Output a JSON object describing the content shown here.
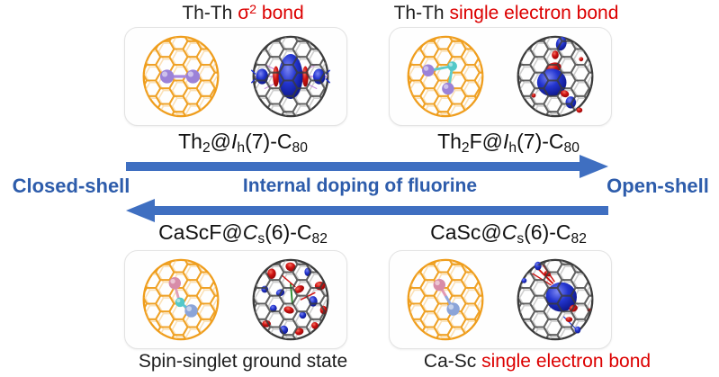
{
  "titles": {
    "top_left": [
      {
        "t": "Th-Th ",
        "c": "#1e1e1e"
      },
      {
        "t": "σ",
        "c": "#dc0000"
      },
      {
        "t": "2",
        "c": "#dc0000",
        "sup": true
      },
      {
        "t": " bond",
        "c": "#dc0000"
      }
    ],
    "top_right": [
      {
        "t": "Th-Th ",
        "c": "#1e1e1e"
      },
      {
        "t": "single electron bond",
        "c": "#dc0000"
      }
    ]
  },
  "formulas": {
    "top_left": [
      {
        "t": "Th"
      },
      {
        "t": "2",
        "sub": true
      },
      {
        "t": "@"
      },
      {
        "t": "I",
        "i": true
      },
      {
        "t": "h",
        "sub": true
      },
      {
        "t": "(7)-C"
      },
      {
        "t": "80",
        "sub": true
      }
    ],
    "top_right": [
      {
        "t": "Th"
      },
      {
        "t": "2",
        "sub": true
      },
      {
        "t": "F@"
      },
      {
        "t": "I",
        "i": true
      },
      {
        "t": "h",
        "sub": true
      },
      {
        "t": "(7)-C"
      },
      {
        "t": "80",
        "sub": true
      }
    ],
    "bottom_left": [
      {
        "t": "CaScF@"
      },
      {
        "t": "C",
        "i": true
      },
      {
        "t": "s",
        "sub": true
      },
      {
        "t": "(6)-C"
      },
      {
        "t": "82",
        "sub": true
      }
    ],
    "bottom_right": [
      {
        "t": "CaSc@"
      },
      {
        "t": "C",
        "i": true
      },
      {
        "t": "s",
        "sub": true
      },
      {
        "t": "(6)-C"
      },
      {
        "t": "82",
        "sub": true
      }
    ]
  },
  "axis": {
    "closed_shell": "Closed-shell",
    "open_shell": "Open-shell",
    "center_label": "Internal doping of fluorine"
  },
  "captions": {
    "bottom_left": [
      {
        "t": "Spin-singlet ground state",
        "c": "#1e1e1e"
      }
    ],
    "bottom_right": [
      {
        "t": "Ca-Sc ",
        "c": "#1e1e1e"
      },
      {
        "t": "single electron bond",
        "c": "#dc0000"
      }
    ]
  },
  "colors": {
    "arrow_blue": "#3f6fc1",
    "label_blue": "#2d5cab",
    "accent_red": "#dc0000",
    "cage_orange": "#ef9d1c",
    "cage_orange_back": "#f8c97d",
    "wire_gray": "#3b3b3b",
    "wire_gray_back": "#a8a8a8",
    "orbital_blue": "#1b2ab5",
    "orbital_red": "#cf1212",
    "thorium_purple": "#9b82d8",
    "fluorine_teal": "#53c8c8",
    "calcium_pink": "#d88ca8",
    "scandium_blue": "#8ba4d8",
    "text_black": "#1e1e1e"
  }
}
